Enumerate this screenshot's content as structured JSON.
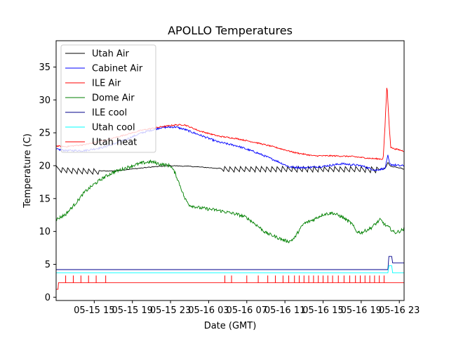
{
  "chart_data": {
    "type": "line",
    "title": "APOLLO Temperatures",
    "xlabel": "Date (GMT)",
    "ylabel": "Temperature (C)",
    "x_unit": "hours since 05-15 11:00 GMT",
    "xlim": [
      11.0,
      47.5
    ],
    "ylim": [
      -0.5,
      39
    ],
    "xticks": [
      {
        "label": "05-15 15",
        "x": 15
      },
      {
        "label": "05-15 19",
        "x": 19
      },
      {
        "label": "05-15 23",
        "x": 23
      },
      {
        "label": "05-16 03",
        "x": 27
      },
      {
        "label": "05-16 07",
        "x": 31
      },
      {
        "label": "05-16 11",
        "x": 35
      },
      {
        "label": "05-16 15",
        "x": 39
      },
      {
        "label": "05-16 19",
        "x": 43
      },
      {
        "label": "05-16 23",
        "x": 47
      }
    ],
    "yticks": [
      {
        "label": "0",
        "y": 0
      },
      {
        "label": "5",
        "y": 5
      },
      {
        "label": "10",
        "y": 10
      },
      {
        "label": "15",
        "y": 15
      },
      {
        "label": "20",
        "y": 20
      },
      {
        "label": "25",
        "y": 25
      },
      {
        "label": "30",
        "y": 30
      },
      {
        "label": "35",
        "y": 35
      }
    ],
    "legend_position": "top-left",
    "series": [
      {
        "name": "Utah Air",
        "color": "#000000",
        "x": [
          11,
          13,
          15,
          17,
          19,
          21,
          23,
          25,
          27,
          29,
          31,
          33,
          35,
          37,
          39,
          41,
          43,
          44.5,
          45.5,
          45.8,
          46,
          46.5,
          47,
          47.5
        ],
        "y": [
          19.5,
          19.3,
          19.2,
          19.2,
          19.5,
          19.8,
          20.0,
          19.9,
          19.7,
          19.5,
          19.5,
          19.5,
          19.5,
          19.5,
          19.5,
          19.5,
          19.5,
          19.4,
          19.5,
          20.5,
          20.0,
          19.8,
          19.7,
          19.4
        ],
        "sawtooth_amp": 0.5
      },
      {
        "name": "Cabinet Air",
        "color": "#0000ff",
        "x": [
          11,
          12,
          14,
          16,
          18,
          20,
          22,
          23.5,
          24.5,
          26,
          28,
          30,
          32,
          34,
          35.5,
          37,
          39,
          41,
          43,
          44.5,
          45.5,
          45.8,
          46,
          47,
          47.5
        ],
        "y": [
          22.5,
          22.3,
          22.3,
          22.8,
          23.8,
          25.0,
          25.8,
          25.9,
          25.5,
          24.7,
          23.6,
          23.0,
          22.0,
          20.8,
          19.8,
          19.7,
          19.9,
          20.3,
          20.0,
          19.3,
          19.6,
          21.5,
          20.2,
          20.0,
          20.0
        ],
        "noise": 0.15
      },
      {
        "name": "ILE Air",
        "color": "#ff0000",
        "x": [
          11,
          12,
          14,
          16,
          18,
          20,
          22,
          23.5,
          24.5,
          26,
          28,
          30,
          32,
          34,
          36,
          38,
          40,
          42,
          44,
          45.3,
          45.5,
          45.7,
          45.9,
          46.1,
          46.4,
          47,
          47.5
        ],
        "y": [
          23.0,
          22.9,
          23.2,
          23.8,
          24.6,
          25.4,
          25.9,
          26.2,
          26.2,
          25.3,
          24.5,
          24.1,
          23.5,
          22.8,
          22.0,
          21.5,
          21.5,
          21.4,
          21.1,
          21.0,
          26.0,
          32.5,
          27.0,
          22.8,
          22.6,
          22.4,
          22.2
        ],
        "noise": 0.1
      },
      {
        "name": "Dome Air",
        "color": "#008000",
        "x": [
          11,
          12,
          13,
          14,
          15,
          16,
          17,
          18,
          19,
          20,
          21,
          22,
          23,
          23.5,
          24,
          24.5,
          25,
          25.5,
          26,
          27,
          28,
          29,
          30,
          31,
          32,
          33,
          34,
          35,
          35.5,
          36,
          36.5,
          37,
          38,
          39,
          40,
          40.5,
          41,
          42,
          42.5,
          43,
          44,
          45,
          45.5,
          46,
          46.5,
          47,
          47.5
        ],
        "y": [
          11.8,
          12.6,
          14.2,
          16.0,
          17.2,
          18.2,
          19.0,
          19.5,
          20.0,
          20.4,
          20.6,
          20.2,
          20.0,
          18.8,
          17.0,
          15.0,
          14.0,
          13.8,
          13.6,
          13.4,
          13.2,
          12.9,
          12.6,
          12.1,
          11.0,
          9.8,
          9.2,
          8.6,
          8.5,
          9.0,
          10.2,
          11.2,
          11.8,
          12.6,
          12.8,
          12.5,
          12.2,
          11.2,
          10.0,
          9.8,
          10.5,
          11.8,
          11.0,
          10.5,
          9.8,
          10.0,
          10.4
        ],
        "noise": 0.25
      },
      {
        "name": "ILE cool",
        "color": "#00008b",
        "x": [
          11,
          45.8,
          45.9,
          46.2,
          46.3,
          47.5
        ],
        "y": [
          4.2,
          4.2,
          6.2,
          6.2,
          5.2,
          5.2
        ]
      },
      {
        "name": "Utah cool",
        "color": "#00ffff",
        "x": [
          11,
          45.8,
          45.9,
          46.2,
          46.3,
          47.5
        ],
        "y": [
          3.7,
          3.7,
          4.8,
          4.8,
          3.7,
          3.7
        ]
      },
      {
        "name": "Utah heat",
        "color": "#ff0000",
        "x": [
          11,
          11.2,
          11.25,
          47.5
        ],
        "y": [
          1.2,
          1.2,
          2.2,
          2.2
        ],
        "spike_x": [
          12.0,
          12.8,
          13.6,
          14.4,
          15.2,
          16.2,
          28.7,
          29.4,
          31.0,
          32.2,
          33.2,
          34.0,
          34.8,
          35.4,
          36.0,
          36.5,
          37.0,
          37.5,
          38.0,
          38.5,
          39.0,
          39.5,
          40.0,
          40.6,
          41.2,
          41.8,
          42.4,
          42.9,
          43.4,
          43.9,
          44.4,
          44.9,
          45.4
        ],
        "spike_top": 3.3
      }
    ]
  }
}
